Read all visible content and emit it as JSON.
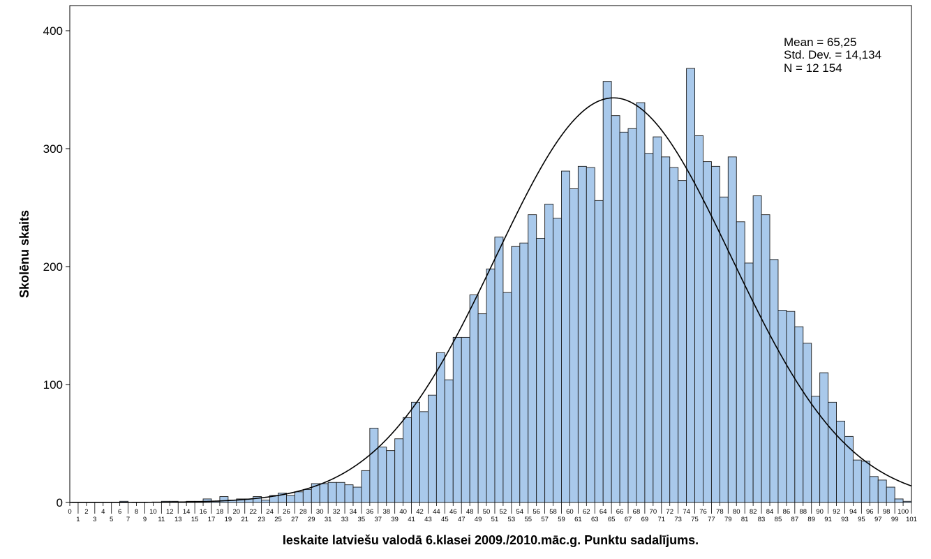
{
  "chart_data": {
    "type": "bar",
    "subtype": "histogram",
    "xlabel": "Ieskaite latviešu valodā 6.klasei 2009./2010.māc.g. Punktu sadalījums.",
    "ylabel": "Skolēnu skaits",
    "ylim": [
      0,
      420
    ],
    "xlim": [
      0,
      101
    ],
    "yticks": [
      "0",
      "100",
      "200",
      "300",
      "400"
    ],
    "xticks": [
      "0",
      "1",
      "2",
      "3",
      "4",
      "5",
      "6",
      "7",
      "8",
      "9",
      "10",
      "11",
      "12",
      "13",
      "14",
      "15",
      "16",
      "17",
      "18",
      "19",
      "20",
      "21",
      "22",
      "23",
      "24",
      "25",
      "26",
      "27",
      "28",
      "29",
      "30",
      "31",
      "32",
      "33",
      "34",
      "35",
      "36",
      "37",
      "38",
      "39",
      "40",
      "41",
      "42",
      "43",
      "44",
      "45",
      "46",
      "47",
      "48",
      "49",
      "50",
      "51",
      "52",
      "53",
      "54",
      "55",
      "56",
      "57",
      "58",
      "59",
      "60",
      "61",
      "62",
      "63",
      "64",
      "65",
      "66",
      "67",
      "68",
      "69",
      "70",
      "71",
      "72",
      "73",
      "74",
      "75",
      "76",
      "77",
      "78",
      "79",
      "80",
      "81",
      "82",
      "83",
      "84",
      "85",
      "86",
      "87",
      "88",
      "89",
      "90",
      "91",
      "92",
      "93",
      "94",
      "95",
      "96",
      "97",
      "98",
      "99",
      "100",
      "101"
    ],
    "categories": [
      0,
      1,
      2,
      3,
      4,
      5,
      6,
      7,
      8,
      9,
      10,
      11,
      12,
      13,
      14,
      15,
      16,
      17,
      18,
      19,
      20,
      21,
      22,
      23,
      24,
      25,
      26,
      27,
      28,
      29,
      30,
      31,
      32,
      33,
      34,
      35,
      36,
      37,
      38,
      39,
      40,
      41,
      42,
      43,
      44,
      45,
      46,
      47,
      48,
      49,
      50,
      51,
      52,
      53,
      54,
      55,
      56,
      57,
      58,
      59,
      60,
      61,
      62,
      63,
      64,
      65,
      66,
      67,
      68,
      69,
      70,
      71,
      72,
      73,
      74,
      75,
      76,
      77,
      78,
      79,
      80,
      81,
      82,
      83,
      84,
      85,
      86,
      87,
      88,
      89,
      90,
      91,
      92,
      93,
      94,
      95,
      96,
      97,
      98,
      99,
      100
    ],
    "values": [
      0,
      0,
      0,
      0,
      0,
      0,
      1,
      0,
      0,
      0,
      0,
      1,
      1,
      0,
      1,
      1,
      3,
      1,
      5,
      2,
      3,
      3,
      5,
      2,
      6,
      8,
      6,
      9,
      11,
      16,
      16,
      17,
      17,
      15,
      13,
      27,
      63,
      47,
      44,
      54,
      72,
      85,
      77,
      91,
      127,
      104,
      140,
      140,
      176,
      160,
      198,
      225,
      178,
      217,
      220,
      244,
      224,
      253,
      241,
      281,
      266,
      285,
      284,
      256,
      357,
      328,
      314,
      317,
      339,
      296,
      310,
      293,
      284,
      273,
      368,
      311,
      289,
      285,
      259,
      293,
      238,
      203,
      260,
      244,
      206,
      163,
      162,
      149,
      135,
      90,
      110,
      85,
      69,
      56,
      36,
      35,
      22,
      19,
      13,
      3,
      1
    ],
    "series": [
      {
        "name": "",
        "values": [
          0,
          0,
          0,
          0,
          0,
          0,
          1,
          0,
          0,
          0,
          0,
          1,
          1,
          0,
          1,
          1,
          3,
          1,
          5,
          2,
          3,
          3,
          5,
          2,
          6,
          8,
          6,
          9,
          11,
          16,
          16,
          17,
          17,
          15,
          13,
          27,
          63,
          47,
          44,
          54,
          72,
          85,
          77,
          91,
          127,
          104,
          140,
          140,
          176,
          160,
          198,
          225,
          178,
          217,
          220,
          244,
          224,
          253,
          241,
          281,
          266,
          285,
          284,
          256,
          357,
          328,
          314,
          317,
          339,
          296,
          310,
          293,
          284,
          273,
          368,
          311,
          289,
          285,
          259,
          293,
          238,
          203,
          260,
          244,
          206,
          163,
          162,
          149,
          135,
          90,
          110,
          85,
          69,
          56,
          36,
          35,
          22,
          19,
          13,
          3,
          1
        ]
      }
    ],
    "normal_curve": {
      "mean": 65.25,
      "std": 14.134,
      "n": 12154,
      "bin_width": 1
    },
    "stats": [
      "Mean = 65,25",
      "Std. Dev. = 14,134",
      "N = 12 154"
    ],
    "legend": "none",
    "grid": false
  },
  "colors": {
    "bar_fill": "#a9c9eb",
    "bar_stroke": "#1b1b1b",
    "curve": "#000000",
    "frame": "#000000"
  }
}
